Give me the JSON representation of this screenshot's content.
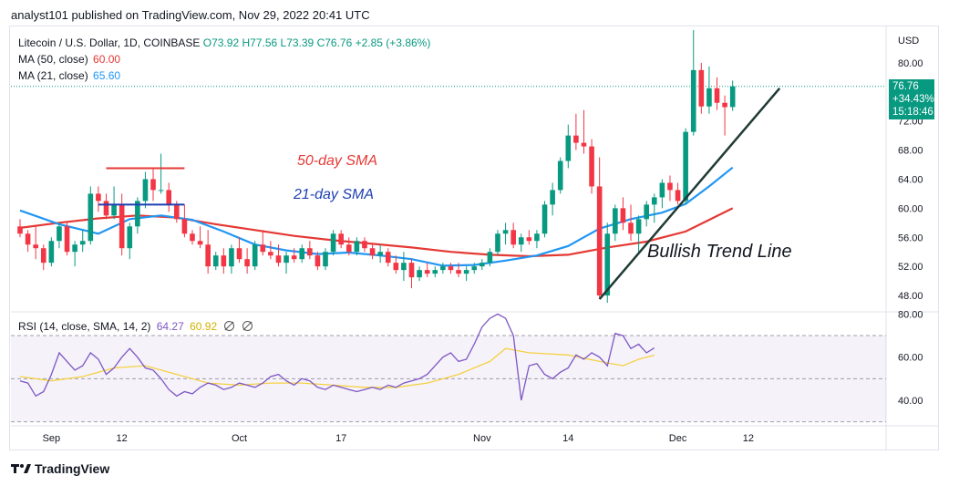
{
  "header": {
    "text": "analyst101 published on TradingView.com, Nov 29, 2022 20:41 UTC"
  },
  "legend": {
    "symbol": "Litecoin / U.S. Dollar, 1D, COINBASE",
    "open": "O73.92",
    "high": "H77.56",
    "low": "L73.39",
    "close": "C76.76",
    "change": "+2.85 (+3.86%)",
    "ma50_label": "MA (50, close)",
    "ma50_value": "60.00",
    "ma21_label": "MA (21, close)",
    "ma21_value": "65.60",
    "rsi_label": "RSI (14, close, SMA, 14, 2)",
    "rsi_value": "64.27",
    "rsi_sma_value": "60.92"
  },
  "price_tag": {
    "price": "76.76",
    "change": "+34.43%",
    "countdown": "15:18:46"
  },
  "footer": {
    "brand": "TradingView"
  },
  "annotations": {
    "sma50": "50-day SMA",
    "sma21": "21-day SMA",
    "trend": "Bullish Trend Line"
  },
  "colors": {
    "up": "#089981",
    "down": "#f23645",
    "ma50": "#e53935",
    "ma21": "#2196f3",
    "rsi": "#7e57c2",
    "rsi_sma": "#f5d142",
    "trendline": "#1f3b35"
  },
  "chart_data": {
    "type": "candlestick",
    "currency": "USD",
    "price_axis": {
      "ylim": [
        46,
        84
      ],
      "ticks": [
        48,
        52,
        56,
        60,
        64,
        68,
        72,
        76,
        80
      ],
      "tick_labels": [
        "48.00",
        "52.00",
        "56.00",
        "60.00",
        "64.00",
        "68.00",
        "72.00",
        "76.00",
        "80.00"
      ]
    },
    "rsi_axis": {
      "ylim": [
        29,
        81
      ],
      "ticks": [
        40,
        60,
        80
      ],
      "tick_labels": [
        "40.00",
        "60.00",
        "80.00"
      ],
      "band": [
        30,
        70
      ],
      "mid": 50
    },
    "x_axis": {
      "labels": [
        "Sep",
        "12",
        "Oct",
        "17",
        "Nov",
        "14",
        "Dec",
        "12"
      ],
      "label_days": [
        4,
        13,
        28,
        41,
        59,
        70,
        84,
        93
      ]
    },
    "start_date": "2022-08-31",
    "candles": [
      [
        57.5,
        58.5,
        56.0,
        56.5
      ],
      [
        56.5,
        57.0,
        54.0,
        55.0
      ],
      [
        55.0,
        57.5,
        53.0,
        54.5
      ],
      [
        54.5,
        55.0,
        51.5,
        52.5
      ],
      [
        52.5,
        56.0,
        52.0,
        55.5
      ],
      [
        55.5,
        58.0,
        54.5,
        57.5
      ],
      [
        57.5,
        58.0,
        53.5,
        54.0
      ],
      [
        54.0,
        55.5,
        52.0,
        55.0
      ],
      [
        55.0,
        57.0,
        54.0,
        55.5
      ],
      [
        55.5,
        63.0,
        55.0,
        62.0
      ],
      [
        62.0,
        63.0,
        59.5,
        61.0
      ],
      [
        61.0,
        62.0,
        58.5,
        59.0
      ],
      [
        59.0,
        63.0,
        58.5,
        60.5
      ],
      [
        60.5,
        62.0,
        53.5,
        54.5
      ],
      [
        54.5,
        58.0,
        53.0,
        57.5
      ],
      [
        57.5,
        61.5,
        56.5,
        61.0
      ],
      [
        61.0,
        65.0,
        60.0,
        64.0
      ],
      [
        64.0,
        65.5,
        61.0,
        62.5
      ],
      [
        62.5,
        67.5,
        62.0,
        62.5
      ],
      [
        62.5,
        63.5,
        59.5,
        60.5
      ],
      [
        60.5,
        61.0,
        58.0,
        58.5
      ],
      [
        58.5,
        60.5,
        56.0,
        56.5
      ],
      [
        56.5,
        57.0,
        55.0,
        55.5
      ],
      [
        55.5,
        57.5,
        54.5,
        55.0
      ],
      [
        55.0,
        57.0,
        51.0,
        52.0
      ],
      [
        52.0,
        54.0,
        51.5,
        53.5
      ],
      [
        53.5,
        54.5,
        51.0,
        52.0
      ],
      [
        52.0,
        55.0,
        51.0,
        54.5
      ],
      [
        54.5,
        56.0,
        52.5,
        53.0
      ],
      [
        53.0,
        54.5,
        51.0,
        52.0
      ],
      [
        52.0,
        55.5,
        51.5,
        55.0
      ],
      [
        55.0,
        57.0,
        53.5,
        54.0
      ],
      [
        54.0,
        55.5,
        53.0,
        53.5
      ],
      [
        53.5,
        55.0,
        52.0,
        52.5
      ],
      [
        52.5,
        54.0,
        51.0,
        53.5
      ],
      [
        53.5,
        54.5,
        52.5,
        53.0
      ],
      [
        53.0,
        55.0,
        52.5,
        54.5
      ],
      [
        54.5,
        55.5,
        53.0,
        53.5
      ],
      [
        53.5,
        54.0,
        51.5,
        52.0
      ],
      [
        52.0,
        54.5,
        51.5,
        54.0
      ],
      [
        54.0,
        57.0,
        53.5,
        56.5
      ],
      [
        56.5,
        57.0,
        54.5,
        55.0
      ],
      [
        55.0,
        56.0,
        53.5,
        54.0
      ],
      [
        54.0,
        56.0,
        53.5,
        55.5
      ],
      [
        55.5,
        56.0,
        54.0,
        54.5
      ],
      [
        54.5,
        55.0,
        53.0,
        53.5
      ],
      [
        53.5,
        55.0,
        52.5,
        54.0
      ],
      [
        54.0,
        54.5,
        52.0,
        52.5
      ],
      [
        52.5,
        53.5,
        51.0,
        51.5
      ],
      [
        51.5,
        54.0,
        50.0,
        52.5
      ],
      [
        52.5,
        53.0,
        49.0,
        50.5
      ],
      [
        50.5,
        52.0,
        50.0,
        51.5
      ],
      [
        51.5,
        52.5,
        50.5,
        51.0
      ],
      [
        51.0,
        52.0,
        50.5,
        51.5
      ],
      [
        51.5,
        52.5,
        51.0,
        52.0
      ],
      [
        52.0,
        52.5,
        51.0,
        51.5
      ],
      [
        51.5,
        52.5,
        50.5,
        51.0
      ],
      [
        51.0,
        52.0,
        50.0,
        51.5
      ],
      [
        51.5,
        52.5,
        51.0,
        52.0
      ],
      [
        52.0,
        53.0,
        51.5,
        52.5
      ],
      [
        52.5,
        54.5,
        52.0,
        54.0
      ],
      [
        54.0,
        57.0,
        53.5,
        56.5
      ],
      [
        56.5,
        58.0,
        55.0,
        57.0
      ],
      [
        57.0,
        58.0,
        54.5,
        55.0
      ],
      [
        55.0,
        56.5,
        54.0,
        56.0
      ],
      [
        56.0,
        57.0,
        55.0,
        55.5
      ],
      [
        55.5,
        57.0,
        54.5,
        56.5
      ],
      [
        56.5,
        61.0,
        56.0,
        60.5
      ],
      [
        60.5,
        63.5,
        59.0,
        62.5
      ],
      [
        62.5,
        67.0,
        62.0,
        66.5
      ],
      [
        66.5,
        71.5,
        65.5,
        70.0
      ],
      [
        70.0,
        73.0,
        68.0,
        69.0
      ],
      [
        69.0,
        73.5,
        67.5,
        68.5
      ],
      [
        68.5,
        69.5,
        62.0,
        63.0
      ],
      [
        63.0,
        67.0,
        47.5,
        48.0
      ],
      [
        48.0,
        58.0,
        47.0,
        56.5
      ],
      [
        56.5,
        60.5,
        55.5,
        60.0
      ],
      [
        60.0,
        61.5,
        57.0,
        58.0
      ],
      [
        58.0,
        60.5,
        55.5,
        56.5
      ],
      [
        56.5,
        59.0,
        54.0,
        58.5
      ],
      [
        58.5,
        61.0,
        57.5,
        60.5
      ],
      [
        60.5,
        62.0,
        58.0,
        61.5
      ],
      [
        61.5,
        64.0,
        60.0,
        63.5
      ],
      [
        63.5,
        64.5,
        61.0,
        62.5
      ],
      [
        62.5,
        63.5,
        60.5,
        61.0
      ],
      [
        61.0,
        71.0,
        60.5,
        70.5
      ],
      [
        70.5,
        84.5,
        70.0,
        79.0
      ],
      [
        79.0,
        80.0,
        73.0,
        74.0
      ],
      [
        74.0,
        79.5,
        73.0,
        76.5
      ],
      [
        76.5,
        78.0,
        73.5,
        74.5
      ],
      [
        74.5,
        75.5,
        70.0,
        73.9
      ],
      [
        73.92,
        77.56,
        73.39,
        76.76
      ]
    ],
    "sma50": [
      [
        0,
        57.3
      ],
      [
        5,
        58.0
      ],
      [
        10,
        58.6
      ],
      [
        15,
        59.0
      ],
      [
        20,
        58.7
      ],
      [
        25,
        57.8
      ],
      [
        30,
        57.0
      ],
      [
        35,
        56.2
      ],
      [
        40,
        55.6
      ],
      [
        45,
        55.1
      ],
      [
        50,
        54.6
      ],
      [
        55,
        54.0
      ],
      [
        60,
        53.6
      ],
      [
        65,
        53.4
      ],
      [
        70,
        53.6
      ],
      [
        75,
        54.6
      ],
      [
        80,
        55.4
      ],
      [
        85,
        56.8
      ],
      [
        88,
        58.4
      ],
      [
        91,
        60.0
      ]
    ],
    "sma21": [
      [
        0,
        59.7
      ],
      [
        5,
        57.8
      ],
      [
        10,
        56.5
      ],
      [
        14,
        58.5
      ],
      [
        18,
        59.0
      ],
      [
        22,
        58.4
      ],
      [
        26,
        56.8
      ],
      [
        30,
        55.0
      ],
      [
        34,
        54.2
      ],
      [
        38,
        53.7
      ],
      [
        42,
        53.9
      ],
      [
        46,
        53.5
      ],
      [
        50,
        53.0
      ],
      [
        54,
        52.1
      ],
      [
        58,
        52.2
      ],
      [
        62,
        52.8
      ],
      [
        66,
        53.5
      ],
      [
        70,
        54.8
      ],
      [
        74,
        57.2
      ],
      [
        78,
        58.5
      ],
      [
        82,
        59.4
      ],
      [
        85,
        60.6
      ],
      [
        88,
        63.0
      ],
      [
        91,
        65.6
      ]
    ],
    "rsi": [
      [
        0,
        49
      ],
      [
        1,
        48
      ],
      [
        2,
        42
      ],
      [
        3,
        44
      ],
      [
        4,
        52
      ],
      [
        5,
        62
      ],
      [
        6,
        58
      ],
      [
        7,
        54
      ],
      [
        8,
        56
      ],
      [
        9,
        62
      ],
      [
        10,
        59
      ],
      [
        11,
        52
      ],
      [
        12,
        55
      ],
      [
        13,
        60
      ],
      [
        14,
        64
      ],
      [
        15,
        60
      ],
      [
        16,
        55
      ],
      [
        17,
        54
      ],
      [
        18,
        50
      ],
      [
        19,
        45
      ],
      [
        20,
        42
      ],
      [
        21,
        44
      ],
      [
        22,
        43
      ],
      [
        23,
        46
      ],
      [
        24,
        48
      ],
      [
        25,
        47
      ],
      [
        26,
        45
      ],
      [
        27,
        46
      ],
      [
        28,
        48
      ],
      [
        29,
        47
      ],
      [
        30,
        46
      ],
      [
        31,
        48
      ],
      [
        32,
        51
      ],
      [
        33,
        52
      ],
      [
        34,
        49
      ],
      [
        35,
        47
      ],
      [
        36,
        50
      ],
      [
        37,
        49
      ],
      [
        38,
        46
      ],
      [
        39,
        45
      ],
      [
        40,
        47
      ],
      [
        41,
        46
      ],
      [
        42,
        45
      ],
      [
        43,
        44
      ],
      [
        44,
        45
      ],
      [
        45,
        46
      ],
      [
        46,
        45
      ],
      [
        47,
        47
      ],
      [
        48,
        46
      ],
      [
        49,
        48
      ],
      [
        50,
        49
      ],
      [
        51,
        50
      ],
      [
        52,
        52
      ],
      [
        53,
        56
      ],
      [
        54,
        60
      ],
      [
        55,
        62
      ],
      [
        56,
        58
      ],
      [
        57,
        59
      ],
      [
        58,
        66
      ],
      [
        59,
        74
      ],
      [
        60,
        78
      ],
      [
        61,
        80
      ],
      [
        62,
        78
      ],
      [
        63,
        70
      ],
      [
        64,
        40
      ],
      [
        65,
        56
      ],
      [
        66,
        57
      ],
      [
        67,
        52
      ],
      [
        68,
        50
      ],
      [
        69,
        53
      ],
      [
        70,
        55
      ],
      [
        71,
        61
      ],
      [
        72,
        59
      ],
      [
        73,
        62
      ],
      [
        74,
        60
      ],
      [
        75,
        56
      ],
      [
        76,
        71
      ],
      [
        77,
        70
      ],
      [
        78,
        64
      ],
      [
        79,
        66
      ],
      [
        80,
        62
      ],
      [
        81,
        64.27
      ]
    ],
    "rsi_sma": [
      [
        0,
        51
      ],
      [
        4,
        49
      ],
      [
        8,
        51
      ],
      [
        12,
        55
      ],
      [
        16,
        56
      ],
      [
        20,
        52
      ],
      [
        24,
        48
      ],
      [
        28,
        47
      ],
      [
        32,
        48
      ],
      [
        36,
        48
      ],
      [
        40,
        47
      ],
      [
        44,
        46
      ],
      [
        48,
        46
      ],
      [
        52,
        48
      ],
      [
        56,
        52
      ],
      [
        60,
        58
      ],
      [
        62,
        64
      ],
      [
        65,
        62
      ],
      [
        70,
        61
      ],
      [
        74,
        58
      ],
      [
        77,
        56
      ],
      [
        79,
        59
      ],
      [
        81,
        60.92
      ]
    ],
    "trend_line": {
      "from": [
        74,
        47.5
      ],
      "to": [
        97,
        76.5
      ]
    },
    "sma50_marker": {
      "from": [
        11,
        65.5
      ],
      "to": [
        21,
        65.5
      ]
    },
    "sma21_marker": {
      "from": [
        10,
        60.5
      ],
      "to": [
        21,
        60.5
      ]
    },
    "last_price_line": 76.76
  }
}
